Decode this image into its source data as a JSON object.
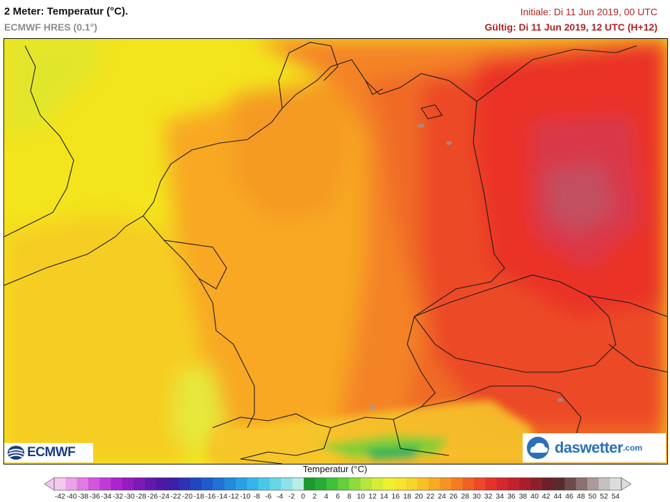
{
  "header": {
    "title": "2 Meter: Temperatur (°C).",
    "model": "ECMWF HRES (0.1°)",
    "initial": "Initiale: Di 11 Jun 2019, 00 UTC",
    "valid": "Gültig: Di 11 Jun 2019, 12 UTC (H+12)"
  },
  "logos": {
    "left": "ECMWF",
    "right_main": "daswetter",
    "right_suffix": ".com"
  },
  "legend": {
    "title": "Temperatur (°C)",
    "ticks": [
      "-42",
      "-40",
      "-38",
      "-36",
      "-34",
      "-32",
      "-30",
      "-28",
      "-26",
      "-24",
      "-22",
      "-20",
      "-18",
      "-16",
      "-14",
      "-12",
      "-10",
      "-8",
      "-6",
      "-4",
      "-2",
      "0",
      "2",
      "4",
      "6",
      "8",
      "10",
      "12",
      "14",
      "16",
      "18",
      "20",
      "22",
      "24",
      "26",
      "28",
      "30",
      "32",
      "34",
      "36",
      "38",
      "40",
      "42",
      "44",
      "46",
      "48",
      "50",
      "52",
      "54"
    ],
    "colors": [
      "#f5c8f0",
      "#eea0ea",
      "#e27ae6",
      "#d255e0",
      "#c239d8",
      "#ad22cf",
      "#951bc3",
      "#7c1ab8",
      "#6417ad",
      "#4d18a5",
      "#3a1fa8",
      "#2b32b5",
      "#2046c0",
      "#1e5ccb",
      "#1f72d4",
      "#2389dd",
      "#28a0e4",
      "#34b6e9",
      "#4ac8ea",
      "#66d7e7",
      "#8ee3e6",
      "#b8eee8",
      "#1c9a2e",
      "#26ad33",
      "#3fc13a",
      "#62cf3b",
      "#8edb3c",
      "#b7e53a",
      "#d8ec36",
      "#eff030",
      "#f6e52c",
      "#f8d529",
      "#f9c125",
      "#f9aa23",
      "#f79322",
      "#f47b22",
      "#f16124",
      "#ee4826",
      "#e6322a",
      "#d6282c",
      "#c3222c",
      "#a81f2b",
      "#8c1f2b",
      "#6e1f28",
      "#5a2a2c",
      "#6e4a4c",
      "#8c7072",
      "#aa9a9b",
      "#c6c0c0",
      "#dcdcdc"
    ]
  },
  "map_layers": {
    "sea_color": "#f2e11b",
    "warm_color": "#f8a020",
    "hot_color": "#f06224",
    "very_hot_color": "#ec3427",
    "extreme_color": "#c94655",
    "border_color": "#1a1a1a"
  }
}
